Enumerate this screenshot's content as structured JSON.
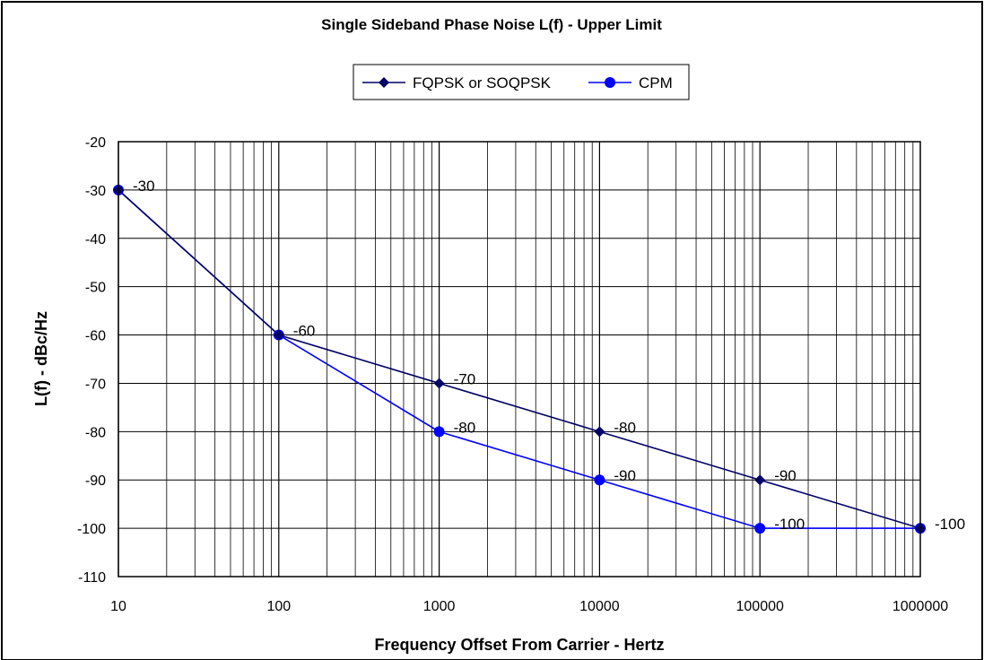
{
  "chart_data": {
    "type": "line",
    "title": "Single Sideband Phase Noise L(f) - Upper Limit",
    "xlabel": "Frequency Offset From Carrier - Hertz",
    "ylabel": "L(f) - dBc/Hz",
    "x_scale": "log",
    "xlim": [
      10,
      1000000
    ],
    "ylim": [
      -110,
      -20
    ],
    "x_ticks": [
      10,
      100,
      1000,
      10000,
      100000,
      1000000
    ],
    "x_tick_labels": [
      "10",
      "100",
      "1000",
      "10000",
      "100000",
      "1000000"
    ],
    "y_ticks": [
      -20,
      -30,
      -40,
      -50,
      -60,
      -70,
      -80,
      -90,
      -100,
      -110
    ],
    "y_tick_labels": [
      "-20",
      "-30",
      "-40",
      "-50",
      "-60",
      "-70",
      "-80",
      "-90",
      "-100",
      "-110"
    ],
    "grid": true,
    "legend_position": "top-center",
    "series": [
      {
        "name": "FQPSK or SOQPSK",
        "color": "#000066",
        "marker": "diamond",
        "x": [
          10,
          100,
          1000,
          10000,
          100000,
          1000000
        ],
        "y": [
          -30,
          -60,
          -70,
          -80,
          -90,
          -100
        ],
        "labels": [
          "-30",
          "-60",
          "-70",
          "-80",
          "-90",
          "-100"
        ]
      },
      {
        "name": "CPM",
        "color": "#0000ff",
        "marker": "circle",
        "x": [
          10,
          100,
          1000,
          10000,
          100000,
          1000000
        ],
        "y": [
          -30,
          -60,
          -80,
          -90,
          -100,
          -100
        ],
        "labels": [
          "",
          "",
          "-80",
          "-90",
          "-100",
          ""
        ]
      }
    ]
  }
}
